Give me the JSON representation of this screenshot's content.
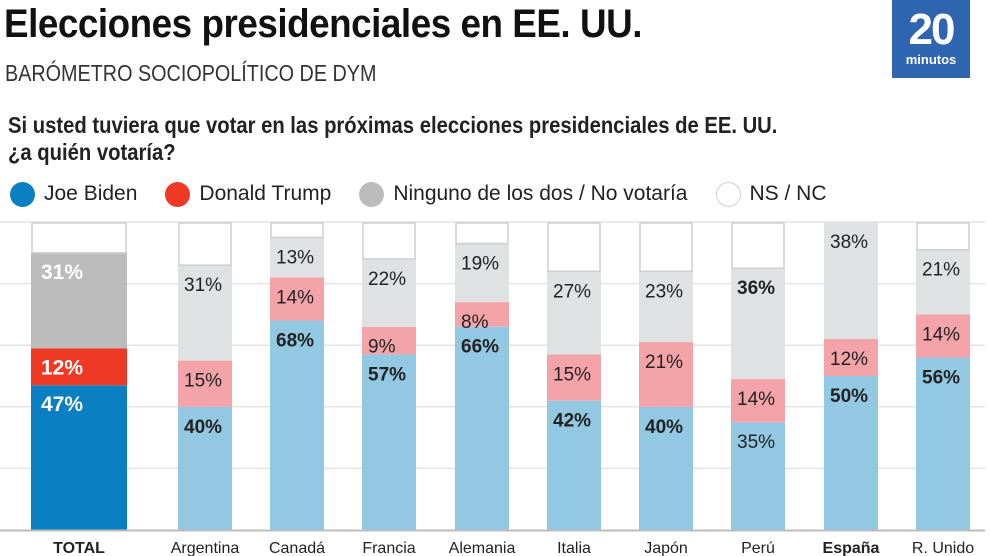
{
  "header": {
    "title": "Elecciones presidenciales en EE. UU.",
    "subtitle": "BARÓMETRO SOCIOPOLÍTICO DE DYM",
    "logo_number": "20",
    "logo_word": "minutos",
    "logo_color": "#2f65ae"
  },
  "question": {
    "line1": "Si usted tuviera que votar en las próximas elecciones presidenciales de EE. UU.",
    "line2": "¿a quién votaría?"
  },
  "legend": [
    {
      "label": "Joe Biden",
      "color": "#0a7fc2"
    },
    {
      "label": "Donald Trump",
      "color": "#ee3a24"
    },
    {
      "label": "Ninguno de los dos / No votaría",
      "color": "#bcbcbc"
    },
    {
      "label": "NS / NC",
      "color": "#ffffff"
    }
  ],
  "chart_data": {
    "type": "bar",
    "stacked": true,
    "title": "Si usted tuviera que votar en las próximas elecciones presidenciales de EE. UU. ¿a quién votaría?",
    "xlabel": "",
    "ylabel": "",
    "ylim": [
      0,
      100
    ],
    "grid": true,
    "gridlines": [
      20,
      40,
      60,
      80,
      100
    ],
    "legend_position": "top",
    "categories": [
      "TOTAL",
      "Argentina",
      "Canadá",
      "Francia",
      "Alemania",
      "Italia",
      "Japón",
      "Perú",
      "España",
      "R. Unido"
    ],
    "bold_categories": [
      "TOTAL",
      "España"
    ],
    "series": [
      {
        "name": "Joe Biden",
        "values": [
          47,
          40,
          68,
          57,
          66,
          42,
          40,
          35,
          50,
          56
        ],
        "labels": [
          "47%",
          "40%",
          "68%",
          "57%",
          "66%",
          "42%",
          "40%",
          "35%",
          "50%",
          "56%"
        ]
      },
      {
        "name": "Donald Trump",
        "values": [
          12,
          15,
          14,
          9,
          8,
          15,
          21,
          14,
          12,
          14
        ],
        "labels": [
          "12%",
          "15%",
          "14%",
          "9%",
          "8%",
          "15%",
          "21%",
          "14%",
          "12%",
          "14%"
        ]
      },
      {
        "name": "Ninguno de los dos / No votaría",
        "values": [
          31,
          31,
          13,
          22,
          19,
          27,
          23,
          36,
          38,
          21
        ],
        "labels": [
          "31%",
          "31%",
          "13%",
          "22%",
          "19%",
          "27%",
          "23%",
          "36%",
          "38%",
          "21%"
        ]
      },
      {
        "name": "NS / NC",
        "values": [
          10,
          14,
          5,
          12,
          7,
          16,
          16,
          15,
          0,
          9
        ],
        "labels": []
      }
    ],
    "highlight_colors": {
      "biden": "#0a7fc2",
      "trump": "#ee3a24",
      "ninguno": "#bcbcbc"
    },
    "muted_colors": {
      "biden": "#93c8e3",
      "trump": "#f4a4a8",
      "ninguno": "#e0e1e2"
    }
  }
}
